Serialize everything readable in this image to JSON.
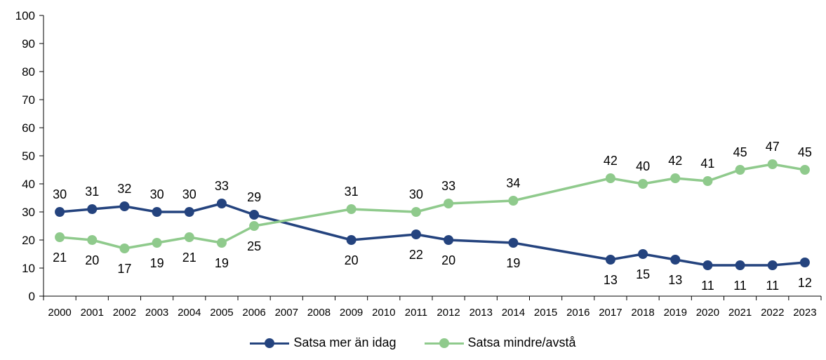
{
  "chart_data": {
    "type": "line",
    "title": "",
    "xlabel": "",
    "ylabel": "",
    "ylim": [
      0,
      100
    ],
    "yticks": [
      0,
      10,
      20,
      30,
      40,
      50,
      60,
      70,
      80,
      90,
      100
    ],
    "categories": [
      "2000",
      "2001",
      "2002",
      "2003",
      "2004",
      "2005",
      "2006",
      "2007",
      "2008",
      "2009",
      "2010",
      "2011",
      "2012",
      "2013",
      "2014",
      "2015",
      "2016",
      "2017",
      "2018",
      "2019",
      "2020",
      "2021",
      "2022",
      "2023"
    ],
    "grid": false,
    "legend_position": "bottom-center",
    "series": [
      {
        "name": "Satsa mer än idag",
        "color": "#24437e",
        "values": [
          30,
          31,
          32,
          30,
          30,
          33,
          29,
          null,
          null,
          20,
          null,
          22,
          20,
          null,
          19,
          null,
          null,
          13,
          15,
          13,
          11,
          11,
          11,
          12
        ]
      },
      {
        "name": "Satsa mindre/avstå",
        "color": "#8fca8c",
        "values": [
          21,
          20,
          17,
          19,
          21,
          19,
          25,
          null,
          null,
          31,
          null,
          30,
          33,
          null,
          34,
          null,
          null,
          42,
          40,
          42,
          41,
          45,
          47,
          45
        ]
      }
    ]
  }
}
